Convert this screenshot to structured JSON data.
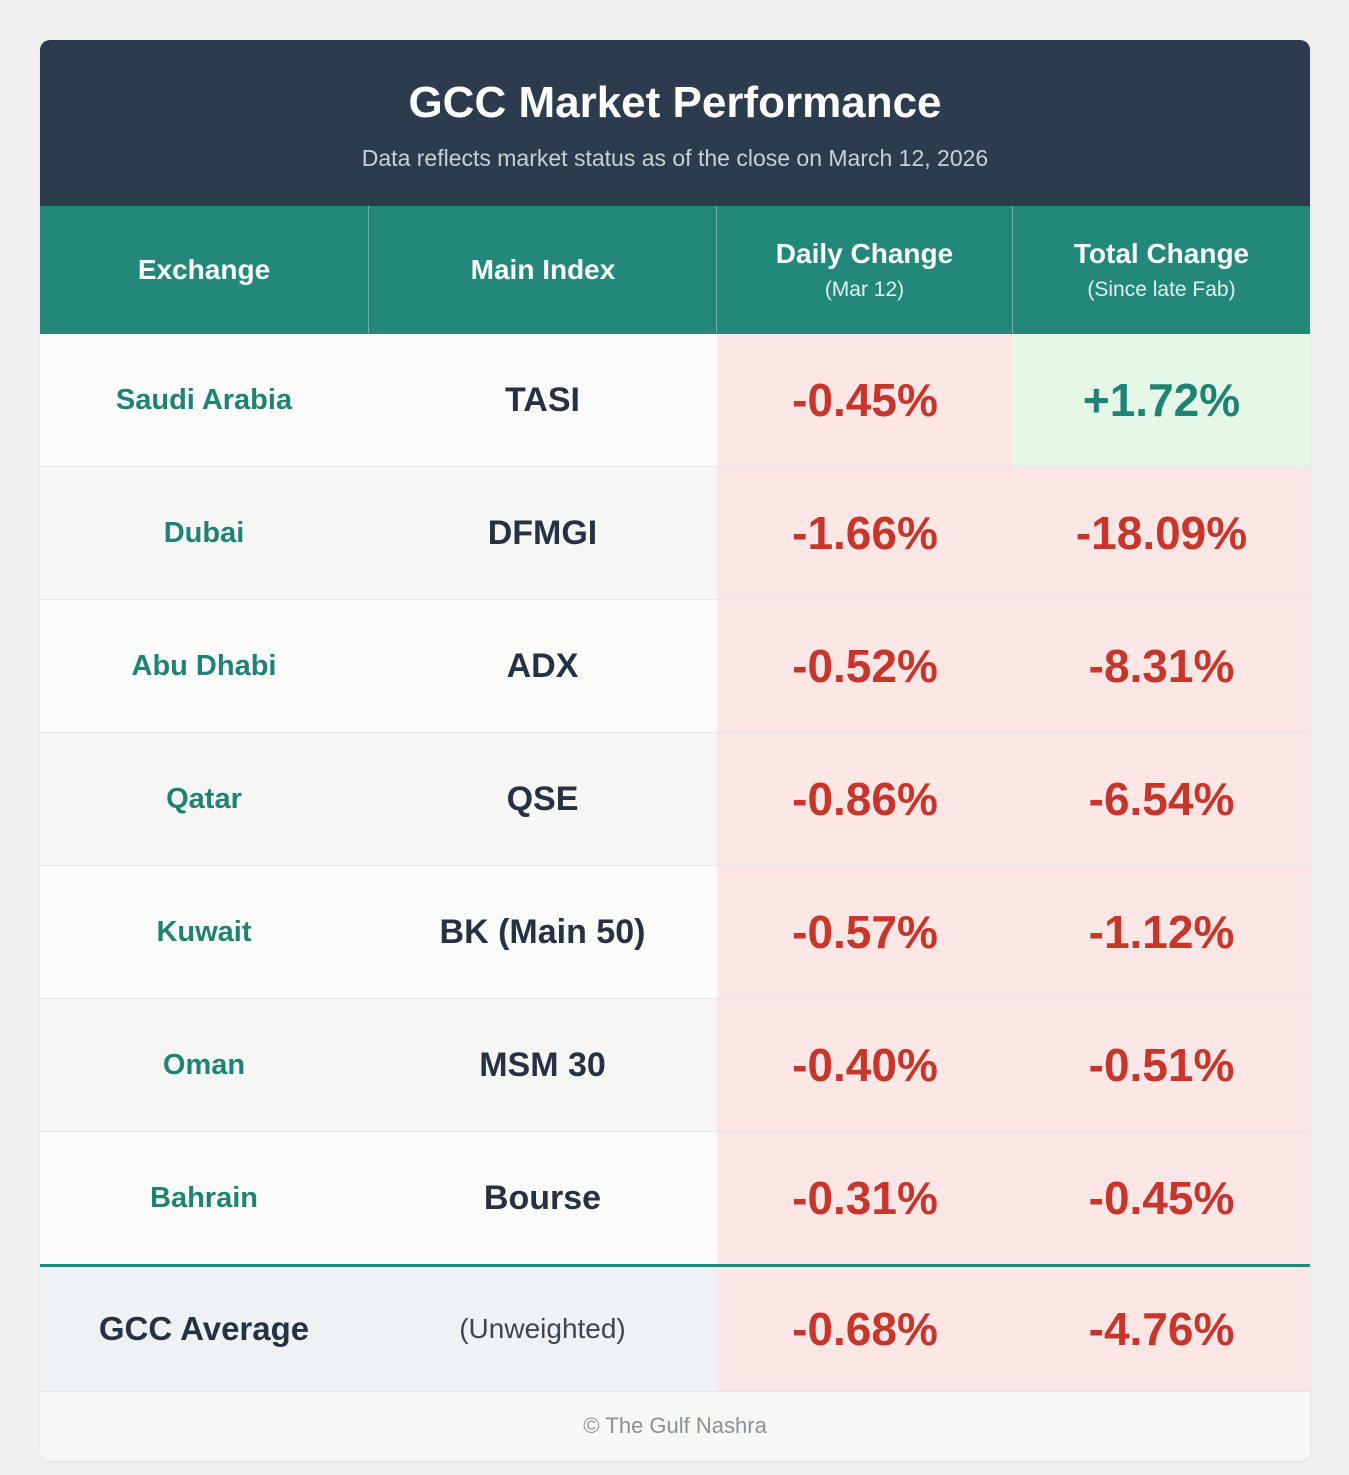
{
  "header": {
    "title": "GCC Market Performance",
    "subtitle": "Data reflects market status as of the close on March 12, 2026"
  },
  "columns": {
    "exchange": "Exchange",
    "main_index": "Main Index",
    "daily_change": "Daily Change",
    "daily_change_sub": "(Mar 12)",
    "total_change": "Total Change",
    "total_change_sub": "(Since late Fab)"
  },
  "rows": [
    {
      "exchange": "Saudi Arabia",
      "index": "TASI",
      "daily": "-0.45%",
      "total": "+1.72%"
    },
    {
      "exchange": "Dubai",
      "index": "DFMGI",
      "daily": "-1.66%",
      "total": "-18.09%"
    },
    {
      "exchange": "Abu Dhabi",
      "index": "ADX",
      "daily": "-0.52%",
      "total": "-8.31%"
    },
    {
      "exchange": "Qatar",
      "index": "QSE",
      "daily": "-0.86%",
      "total": "-6.54%"
    },
    {
      "exchange": "Kuwait",
      "index": "BK (Main 50)",
      "daily": "-0.57%",
      "total": "-1.12%"
    },
    {
      "exchange": "Oman",
      "index": "MSM 30",
      "daily": "-0.40%",
      "total": "-0.51%"
    },
    {
      "exchange": "Bahrain",
      "index": "Bourse",
      "daily": "-0.31%",
      "total": "-0.45%"
    }
  ],
  "average": {
    "exchange": "GCC Average",
    "index": "(Unweighted)",
    "daily": "-0.68%",
    "total": "-4.76%"
  },
  "footer": {
    "copyright_symbol": "©",
    "text": "The Gulf Nashra"
  },
  "colors": {
    "negative": "#c8352a",
    "positive": "#1f8373",
    "header_bg": "#2d3b4e",
    "table_header_bg": "#22897a"
  },
  "chart_data": {
    "type": "table",
    "title": "GCC Market Performance",
    "subtitle": "Data reflects market status as of the close on March 12, 2026",
    "headers": [
      "Exchange",
      "Main Index",
      "Daily Change (Mar 12)",
      "Total Change (Since late Fab)"
    ],
    "rows": [
      [
        "Saudi Arabia",
        "TASI",
        -0.45,
        1.72
      ],
      [
        "Dubai",
        "DFMGI",
        -1.66,
        -18.09
      ],
      [
        "Abu Dhabi",
        "ADX",
        -0.52,
        -8.31
      ],
      [
        "Qatar",
        "QSE",
        -0.86,
        -6.54
      ],
      [
        "Kuwait",
        "BK (Main 50)",
        -0.57,
        -1.12
      ],
      [
        "Oman",
        "MSM 30",
        -0.4,
        -0.51
      ],
      [
        "Bahrain",
        "Bourse",
        -0.31,
        -0.45
      ],
      [
        "GCC Average",
        "(Unweighted)",
        -0.68,
        -4.76
      ]
    ]
  }
}
